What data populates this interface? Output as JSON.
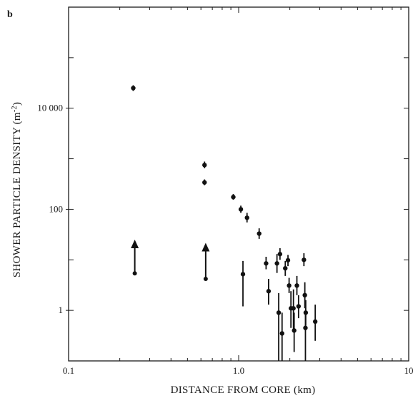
{
  "chart_data": {
    "type": "scatter",
    "panel_label": "b",
    "xlabel": "DISTANCE FROM CORE (km)",
    "ylabel": "SHOWER PARTICLE DENSITY (m",
    "ylabel_sup": "-2",
    "ylabel_end": ")",
    "x_scale": "log",
    "y_scale": "log",
    "xlim": [
      0.1,
      10
    ],
    "ylim": [
      0.1,
      1000000
    ],
    "x_ticks": [
      {
        "value": 0.1,
        "label": "0.1"
      },
      {
        "value": 1.0,
        "label": "1.0"
      },
      {
        "value": 10,
        "label": "10"
      }
    ],
    "y_ticks": [
      {
        "value": 1,
        "label": "1"
      },
      {
        "value": 100,
        "label": "100"
      },
      {
        "value": 10000,
        "label": "10 000"
      }
    ],
    "grid": false,
    "points": [
      {
        "x": 0.24,
        "y": 25000,
        "err": [
          22000,
          28500
        ]
      },
      {
        "x": 0.63,
        "y": 750,
        "err": [
          650,
          880
        ]
      },
      {
        "x": 0.63,
        "y": 340,
        "err": [
          300,
          390
        ]
      },
      {
        "x": 0.93,
        "y": 175,
        "err": [
          155,
          200
        ]
      },
      {
        "x": 1.03,
        "y": 100,
        "err": [
          85,
          118
        ]
      },
      {
        "x": 1.12,
        "y": 68,
        "err": [
          55,
          85
        ]
      },
      {
        "x": 1.32,
        "y": 33,
        "err": [
          26,
          42
        ]
      },
      {
        "x": 1.45,
        "y": 8.5,
        "err": [
          6.5,
          11.5
        ]
      },
      {
        "x": 1.5,
        "y": 2.4,
        "err": [
          1.3,
          4.2
        ]
      },
      {
        "x": 1.68,
        "y": 8.5,
        "err": [
          5.5,
          13
        ]
      },
      {
        "x": 1.75,
        "y": 13,
        "err": [
          10,
          17
        ]
      },
      {
        "x": 1.72,
        "y": 0.9,
        "err": [
          0.1,
          2.2
        ]
      },
      {
        "x": 1.8,
        "y": 0.35,
        "err": [
          0.1,
          0.9
        ]
      },
      {
        "x": 1.88,
        "y": 6.8,
        "err": [
          4.8,
          9.5
        ]
      },
      {
        "x": 1.95,
        "y": 9.8,
        "err": [
          7.5,
          12.5
        ]
      },
      {
        "x": 1.98,
        "y": 3.1,
        "err": [
          2.2,
          4.4
        ]
      },
      {
        "x": 2.03,
        "y": 1.1,
        "err": [
          0.45,
          2.4
        ]
      },
      {
        "x": 2.1,
        "y": 1.1,
        "err": [
          0.4,
          2.6
        ]
      },
      {
        "x": 2.12,
        "y": 0.4,
        "err": [
          0.15,
          0.9
        ]
      },
      {
        "x": 2.2,
        "y": 3.1,
        "err": [
          2.0,
          4.8
        ]
      },
      {
        "x": 2.25,
        "y": 1.2,
        "err": [
          0.7,
          2.0
        ]
      },
      {
        "x": 2.42,
        "y": 10,
        "err": [
          7.5,
          13.5
        ]
      },
      {
        "x": 2.45,
        "y": 2.0,
        "err": [
          1.1,
          3.6
        ]
      },
      {
        "x": 2.48,
        "y": 0.9,
        "err": [
          0.5,
          1.6
        ]
      },
      {
        "x": 2.47,
        "y": 0.45,
        "err": [
          0.1,
          1.0
        ]
      },
      {
        "x": 2.82,
        "y": 0.6,
        "err": [
          0.25,
          1.3
        ]
      }
    ],
    "lower_limits": [
      {
        "x": 0.245,
        "y_low": 5.4,
        "y_high": 22
      },
      {
        "x": 0.64,
        "y_low": 4.2,
        "y_high": 19
      },
      {
        "x": 1.06,
        "y": 5.2,
        "err": [
          1.2,
          9.5
        ]
      }
    ]
  }
}
